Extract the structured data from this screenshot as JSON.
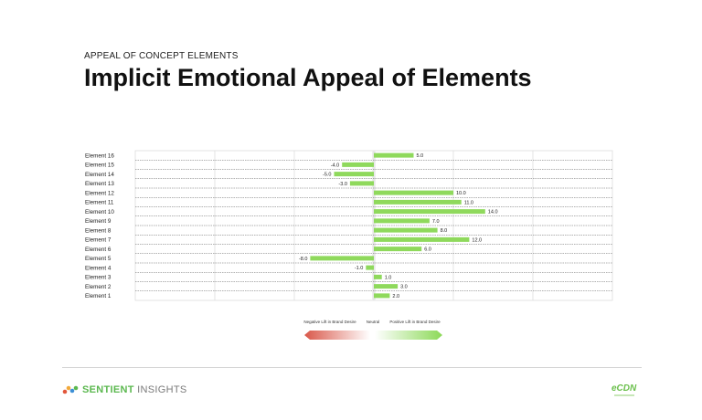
{
  "header": {
    "subtitle": "APPEAL OF CONCEPT ELEMENTS",
    "title": "Implicit Emotional Appeal of Elements"
  },
  "colors": {
    "bar_positive": "#8fd95c",
    "bar_negative": "#8fd95c",
    "grid": "#dddddd",
    "row_separator": "#666666",
    "scale_negative": "#d9584a",
    "scale_positive": "#8cd958"
  },
  "chart_data": {
    "type": "bar",
    "orientation": "horizontal",
    "categories": [
      "Element 16",
      "Element 15",
      "Element 14",
      "Element 13",
      "Element 12",
      "Element 11",
      "Element 10",
      "Element 9",
      "Element 8",
      "Element 7",
      "Element 6",
      "Element 5",
      "Element 4",
      "Element 3",
      "Element 2",
      "Element 1"
    ],
    "values": [
      5.0,
      -4.0,
      -5.0,
      -3.0,
      10.0,
      11.0,
      14.0,
      7.0,
      8.0,
      12.0,
      6.0,
      -8.0,
      -1.0,
      1.0,
      3.0,
      2.0
    ],
    "value_labels": [
      "5.0",
      "-4.0",
      "-5.0",
      "-3.0",
      "10.0",
      "11.0",
      "14.0",
      "7.0",
      "8.0",
      "12.0",
      "6.0",
      "-8.0",
      "-1.0",
      "1.0",
      "3.0",
      "2.0"
    ],
    "xlim": [
      -30,
      30
    ],
    "grid": true,
    "legend": {
      "negative_label": "Negative Lift in Brand Desire",
      "neutral_label": "Neutral",
      "positive_label": "Positive Lift in Brand Desire"
    }
  },
  "footer": {
    "logo_primary": "SENTIENT",
    "logo_secondary": "INSIGHTS",
    "partner_logo": "eCDN"
  }
}
